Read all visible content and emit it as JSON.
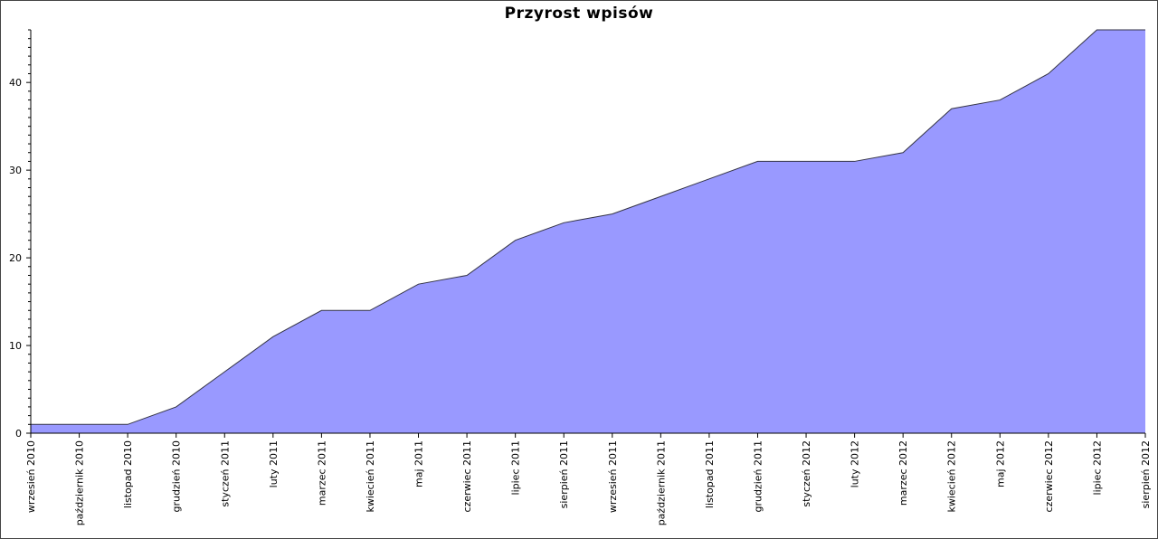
{
  "chart_data": {
    "type": "area",
    "title": "Przyrost wpisów",
    "xlabel": "",
    "ylabel": "",
    "categories": [
      "wrzesień 2010",
      "październik 2010",
      "listopad 2010",
      "grudzień 2010",
      "styczeń 2011",
      "luty 2011",
      "marzec 2011",
      "kwiecień 2011",
      "maj 2011",
      "czerwiec 2011",
      "lipiec 2011",
      "sierpień 2011",
      "wrzesień 2011",
      "październik 2011",
      "listopad 2011",
      "grudzień 2011",
      "styczeń 2012",
      "luty 2012",
      "marzec 2012",
      "kwiecień 2012",
      "maj 2012",
      "czerwiec 2012",
      "lipiec 2012",
      "sierpień 2012"
    ],
    "values": [
      1,
      1,
      1,
      3,
      7,
      11,
      14,
      14,
      17,
      18,
      22,
      24,
      25,
      27,
      29,
      31,
      31,
      31,
      32,
      37,
      38,
      41,
      46,
      46
    ],
    "ylim": [
      0,
      46
    ],
    "yticks": [
      0,
      10,
      20,
      30,
      40
    ],
    "grid": false,
    "colors": {
      "fill": "#9999ff",
      "line": "#333344"
    }
  }
}
